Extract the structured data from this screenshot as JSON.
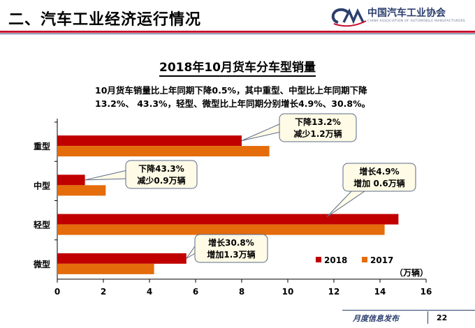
{
  "header": {
    "title": "二、汽车工业经济运行情况"
  },
  "logo": {
    "name_cn": "中国汽车工业协会",
    "name_en": "CHINA ASSOCIATION OF AUTOMOBILE MANUFACTURERS",
    "mark": "CAAM"
  },
  "summary": {
    "line1": "10月货车销量比上年同期下降0.5%，其中重型、中型比上年同期下降",
    "line2": "13.2%、 43.3%，轻型、微型比上年同期分别增长4.9%、30.8%。"
  },
  "chart_data": {
    "type": "bar",
    "orientation": "horizontal",
    "title": "2018年10月货车分车型销量",
    "categories": [
      "重型",
      "中型",
      "轻型",
      "微型"
    ],
    "series": [
      {
        "name": "2018",
        "color": "#c00000",
        "values": [
          8.0,
          1.2,
          14.8,
          5.6
        ]
      },
      {
        "name": "2017",
        "color": "#e46c0a",
        "values": [
          9.2,
          2.1,
          14.2,
          4.2
        ]
      }
    ],
    "xlim": [
      0,
      16
    ],
    "xticks": [
      "0",
      "2",
      "4",
      "6",
      "8",
      "10",
      "12",
      "14",
      "16"
    ],
    "unit_label": "（万辆）",
    "legend_position": "bottom-right",
    "grid": false,
    "annotations": [
      {
        "category": "重型",
        "line1": "下降13.2%",
        "line2": "减少1.2万辆"
      },
      {
        "category": "中型",
        "line1": "下降43.3%",
        "line2": "减少0.9万辆"
      },
      {
        "category": "轻型",
        "line1": "增长4.9%",
        "line2": "增加 0.6万辆"
      },
      {
        "category": "微型",
        "line1": "增长30.8%",
        "line2": "增加1.3万辆"
      }
    ]
  },
  "footer": {
    "text": "月度信息发布",
    "page": "22"
  }
}
